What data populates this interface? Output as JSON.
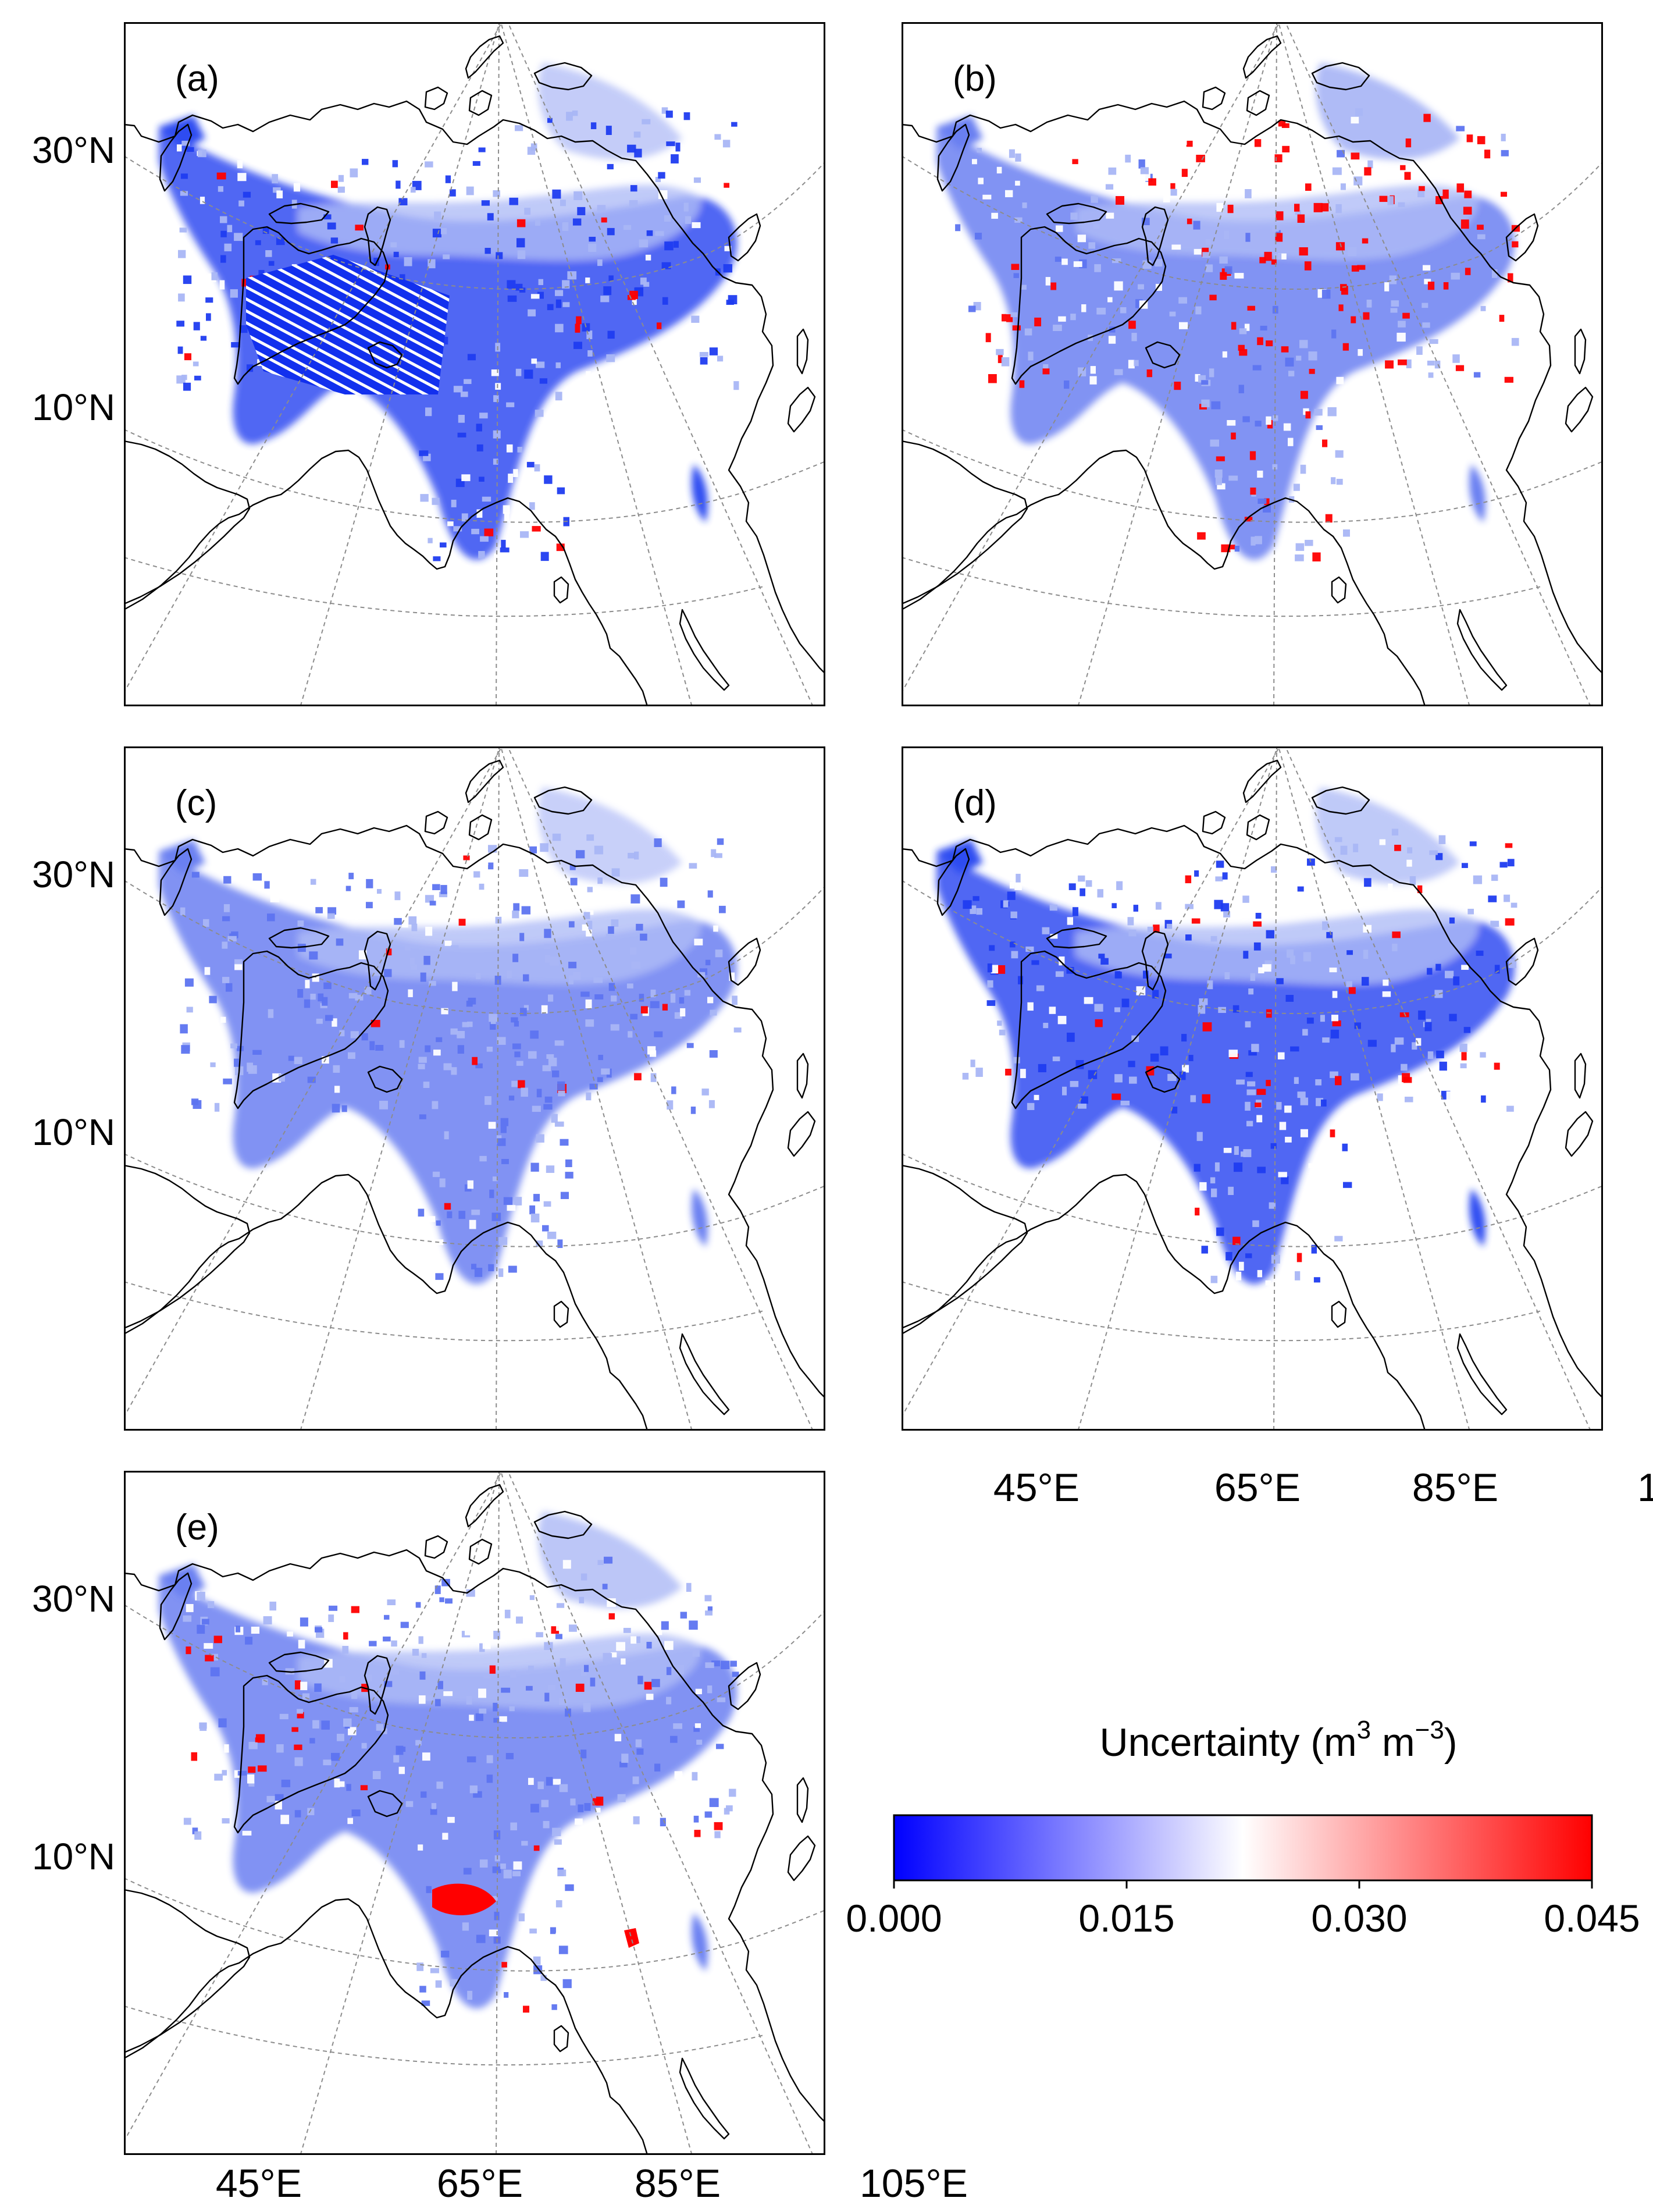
{
  "panels": [
    {
      "label": "(a)"
    },
    {
      "label": "(b)"
    },
    {
      "label": "(c)"
    },
    {
      "label": "(d)"
    },
    {
      "label": "(e)"
    }
  ],
  "lat_ticks": [
    "30°N",
    "10°N"
  ],
  "lon_ticks": [
    "45°E",
    "65°E",
    "85°E",
    "105°E"
  ],
  "colorbar": {
    "title": "Uncertainty (m",
    "exp1": "3",
    "mid": " m",
    "exp2": "−3",
    "close": ")",
    "ticks": [
      "0.000",
      "0.015",
      "0.030",
      "0.045"
    ],
    "colors": {
      "low": "#0000ff",
      "mid": "#ffffff",
      "high": "#ff0000"
    }
  },
  "colors": {
    "frame": "#000000",
    "coast": "#000000",
    "graticule": "#8c8c8c",
    "blue_strong": "#1f3cf0",
    "blue_mid": "#5d74f0",
    "blue_light": "#a9b6f6",
    "red": "#ff0000",
    "red_light": "#f6a0a0"
  }
}
